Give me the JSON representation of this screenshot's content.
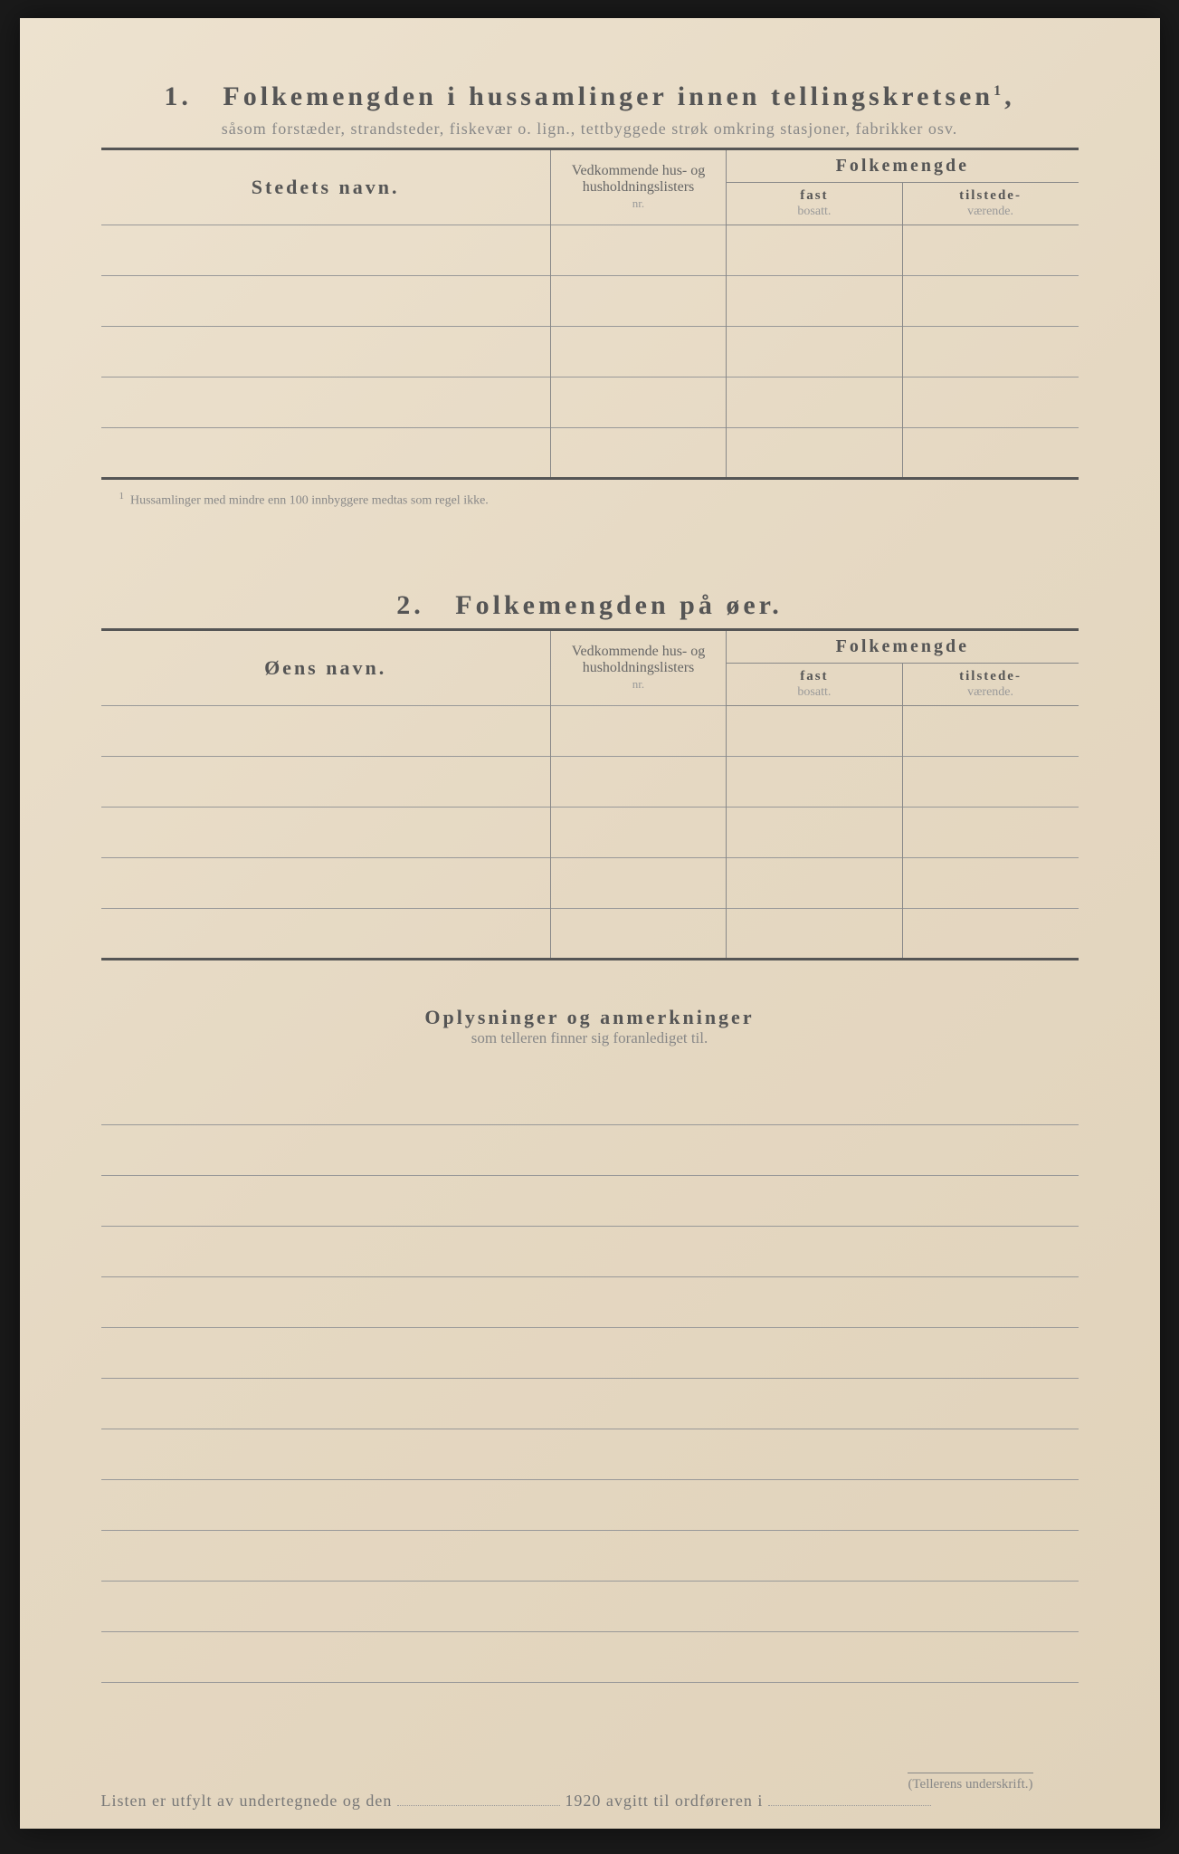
{
  "colors": {
    "page_bg": "#e8dcc8",
    "text_dark": "#555555",
    "text_mid": "#777777",
    "text_light": "#888888",
    "border": "#888888"
  },
  "section1": {
    "number": "1.",
    "title": "Folkemengden i hussamlinger innen tellingskretsen",
    "title_sup": "1",
    "subtitle": "såsom forstæder, strandsteder, fiskevær o. lign., tettbyggede strøk omkring stasjoner, fabrikker osv.",
    "col_name": "Stedets navn.",
    "col_nr_line1": "Vedkommende hus- og",
    "col_nr_line2": "husholdningslisters",
    "col_nr_line3": "nr.",
    "col_folkemengde": "Folkemengde",
    "col_fast_bold": "fast",
    "col_fast_light": "bosatt.",
    "col_til_bold": "tilstede-",
    "col_til_light": "værende.",
    "row_count": 5,
    "footnote_sup": "1",
    "footnote": "Hussamlinger med mindre enn 100 innbyggere medtas som regel ikke."
  },
  "section2": {
    "number": "2.",
    "title": "Folkemengden på øer.",
    "col_name": "Øens navn.",
    "col_nr_line1": "Vedkommende hus- og",
    "col_nr_line2": "husholdningslisters",
    "col_nr_line3": "nr.",
    "col_folkemengde": "Folkemengde",
    "col_fast_bold": "fast",
    "col_fast_light": "bosatt.",
    "col_til_bold": "tilstede-",
    "col_til_light": "værende.",
    "row_count": 5
  },
  "section3": {
    "title": "Oplysninger og anmerkninger",
    "subtitle": "som telleren finner sig foranlediget til.",
    "line_count": 12
  },
  "footer": {
    "text_part1": "Listen er utfylt av undertegnede og den",
    "text_year": "1920",
    "text_part2": "avgitt til ordføreren i",
    "signature_label": "(Tellerens underskrift.)"
  }
}
